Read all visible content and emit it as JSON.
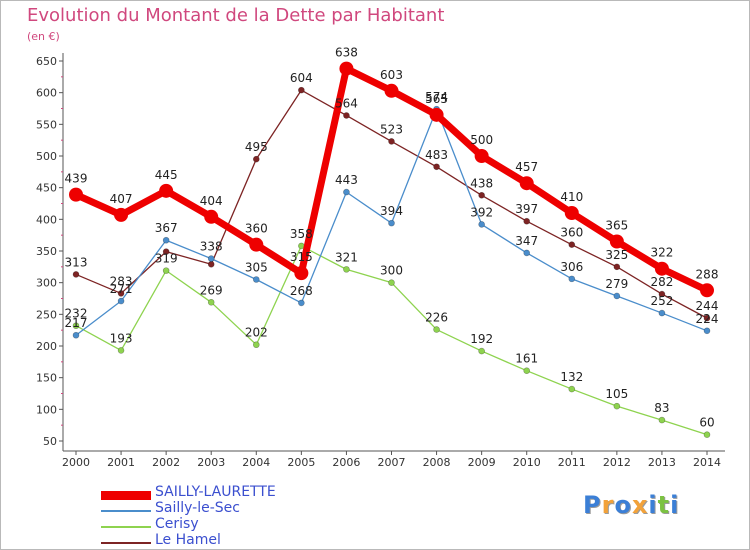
{
  "title": "Evolution du Montant de la Dette par Habitant",
  "subtitle": "(en €)",
  "logo": {
    "text": "Proxiti",
    "colors": [
      "#3b7fd6",
      "#f2a23a",
      "#3b7fd6",
      "#f2a23a",
      "#3b7fd6",
      "#7cc242",
      "#3b7fd6"
    ]
  },
  "chart_data": {
    "type": "line",
    "title": "Evolution du Montant de la Dette par Habitant",
    "ylabel": "(en €)",
    "xlabel": "",
    "x": [
      "2000",
      "2001",
      "2002",
      "2003",
      "2004",
      "2005",
      "2006",
      "2007",
      "2008",
      "2009",
      "2010",
      "2011",
      "2012",
      "2013",
      "2014"
    ],
    "ylim": [
      50,
      650
    ],
    "yticks": [
      "650",
      "600",
      "550",
      "500",
      "450",
      "400",
      "350",
      "300",
      "250",
      "200",
      "150",
      "100",
      "50"
    ],
    "grid": false,
    "legend": "bottom-left",
    "series": [
      {
        "name": "SAILLY-LAURETTE",
        "color": "#ee0000",
        "values": [
          439,
          407,
          445,
          404,
          360,
          315,
          638,
          603,
          565,
          500,
          457,
          410,
          365,
          322,
          288
        ],
        "labels": [
          "439",
          "407",
          "445",
          "404",
          "360",
          "315",
          "638",
          "603",
          "565",
          "500",
          "457",
          "410",
          "365",
          "322",
          "288"
        ]
      },
      {
        "name": "Sailly-le-Sec",
        "color": "#4a8dcb",
        "values": [
          217,
          271,
          367,
          338,
          305,
          268,
          443,
          394,
          574,
          392,
          347,
          306,
          279,
          252,
          224
        ],
        "labels": [
          "217",
          "271",
          "367",
          "338",
          "305",
          "268",
          "443",
          "394",
          "574",
          "392",
          "347",
          "306",
          "279",
          "252",
          "224"
        ]
      },
      {
        "name": "Cerisy",
        "color": "#8ed34f",
        "values": [
          232,
          193,
          319,
          269,
          202,
          358,
          321,
          300,
          226,
          192,
          161,
          132,
          105,
          83,
          60
        ],
        "labels": [
          "232",
          "193",
          "319",
          "269",
          "202",
          "358",
          "321",
          "300",
          "226",
          "192",
          "161",
          "132",
          "105",
          "83",
          "60"
        ]
      },
      {
        "name": "Le Hamel",
        "color": "#7d2424",
        "values": [
          313,
          283,
          349,
          329,
          495,
          604,
          564,
          523,
          483,
          438,
          397,
          360,
          325,
          282,
          244
        ],
        "labels": [
          "313",
          "283",
          "",
          "",
          "495",
          "604",
          "564",
          "523",
          "483",
          "438",
          "397",
          "360",
          "325",
          "282",
          "244"
        ]
      }
    ]
  }
}
